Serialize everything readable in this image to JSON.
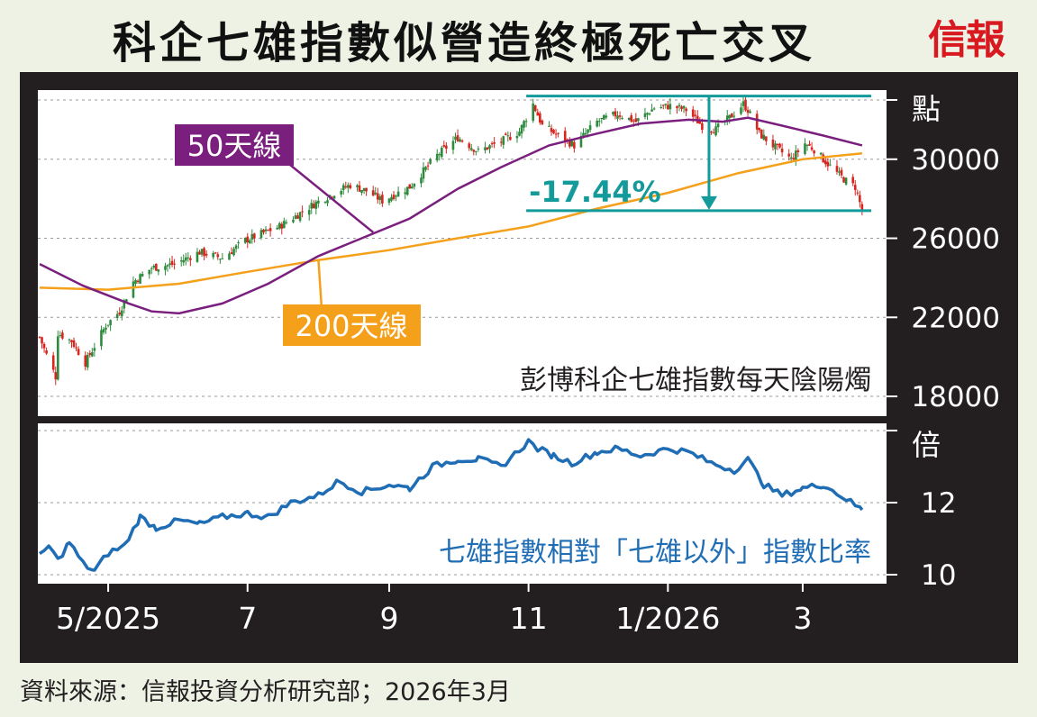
{
  "headline": "科企七雄指數似營造終極死亡交叉",
  "brand": "信報",
  "source": "資料來源：信報投資分析研究部；2026年3月",
  "colors": {
    "up": "#2e8b3e",
    "down": "#d7261f",
    "ma50": "#7b1f7f",
    "ma200": "#f5a01a",
    "ratio": "#1f6db5",
    "teal": "#139a9a",
    "frame": "#231f20",
    "panel": "#ffffff"
  },
  "chart_data": [
    {
      "type": "candlestick",
      "title": "彭博科企七雄指數每天陰陽燭",
      "y_unit": "點",
      "ylim": [
        17000,
        33500
      ],
      "y_ticks": [
        18000,
        22000,
        26000,
        30000
      ],
      "x_ticks": [
        "5/2025",
        "7",
        "9",
        "11",
        "1/2026",
        "3"
      ],
      "x_range": [
        "2025-04-01",
        "2026-03-31"
      ],
      "grid": true,
      "close_anchors": [
        [
          "2025-04-01",
          21000
        ],
        [
          "2025-04-04",
          20100
        ],
        [
          "2025-04-08",
          19000
        ],
        [
          "2025-04-09",
          21200
        ],
        [
          "2025-04-15",
          20800
        ],
        [
          "2025-04-21",
          19700
        ],
        [
          "2025-04-30",
          21600
        ],
        [
          "2025-05-06",
          22300
        ],
        [
          "2025-05-12",
          23800
        ],
        [
          "2025-05-20",
          24500
        ],
        [
          "2025-05-30",
          24700
        ],
        [
          "2025-06-10",
          25300
        ],
        [
          "2025-06-20",
          25000
        ],
        [
          "2025-06-30",
          25900
        ],
        [
          "2025-07-15",
          26600
        ],
        [
          "2025-07-31",
          27800
        ],
        [
          "2025-08-08",
          28300
        ],
        [
          "2025-08-15",
          28700
        ],
        [
          "2025-08-22",
          28400
        ],
        [
          "2025-08-29",
          27900
        ],
        [
          "2025-09-10",
          28600
        ],
        [
          "2025-09-22",
          30200
        ],
        [
          "2025-10-01",
          31100
        ],
        [
          "2025-10-10",
          30400
        ],
        [
          "2025-10-20",
          30900
        ],
        [
          "2025-10-28",
          31400
        ],
        [
          "2025-11-03",
          32800
        ],
        [
          "2025-11-07",
          31700
        ],
        [
          "2025-11-14",
          31200
        ],
        [
          "2025-11-21",
          30700
        ],
        [
          "2025-12-01",
          31900
        ],
        [
          "2025-12-10",
          32300
        ],
        [
          "2025-12-18",
          31900
        ],
        [
          "2025-12-26",
          32600
        ],
        [
          "2026-01-02",
          32700
        ],
        [
          "2026-01-09",
          32500
        ],
        [
          "2026-01-16",
          31700
        ],
        [
          "2026-01-22",
          31500
        ],
        [
          "2026-01-28",
          32100
        ],
        [
          "2026-02-03",
          32800
        ],
        [
          "2026-02-05",
          32500
        ],
        [
          "2026-02-10",
          31300
        ],
        [
          "2026-02-17",
          30600
        ],
        [
          "2026-02-24",
          30000
        ],
        [
          "2026-03-02",
          30800
        ],
        [
          "2026-03-06",
          30500
        ],
        [
          "2026-03-10",
          30000
        ],
        [
          "2026-03-16",
          29300
        ],
        [
          "2026-03-20",
          28900
        ],
        [
          "2026-03-24",
          28600
        ],
        [
          "2026-03-27",
          27400
        ]
      ],
      "series": [
        {
          "name": "50天線",
          "points": [
            [
              "2025-04-01",
              24700
            ],
            [
              "2025-04-20",
              23600
            ],
            [
              "2025-05-10",
              22700
            ],
            [
              "2025-05-20",
              22300
            ],
            [
              "2025-06-01",
              22200
            ],
            [
              "2025-06-20",
              22700
            ],
            [
              "2025-07-10",
              23700
            ],
            [
              "2025-08-01",
              25100
            ],
            [
              "2025-08-20",
              26000
            ],
            [
              "2025-09-10",
              27000
            ],
            [
              "2025-10-01",
              28500
            ],
            [
              "2025-10-20",
              29600
            ],
            [
              "2025-11-10",
              30700
            ],
            [
              "2025-12-01",
              31300
            ],
            [
              "2025-12-20",
              31800
            ],
            [
              "2026-01-10",
              32000
            ],
            [
              "2026-01-25",
              31900
            ],
            [
              "2026-02-05",
              32100
            ],
            [
              "2026-02-20",
              31700
            ],
            [
              "2026-03-10",
              31200
            ],
            [
              "2026-03-27",
              30700
            ]
          ]
        },
        {
          "name": "200天線",
          "points": [
            [
              "2025-04-01",
              23500
            ],
            [
              "2025-05-01",
              23400
            ],
            [
              "2025-06-01",
              23700
            ],
            [
              "2025-07-01",
              24300
            ],
            [
              "2025-08-01",
              24900
            ],
            [
              "2025-09-01",
              25400
            ],
            [
              "2025-10-01",
              26000
            ],
            [
              "2025-11-01",
              26600
            ],
            [
              "2025-12-01",
              27500
            ],
            [
              "2026-01-01",
              28300
            ],
            [
              "2026-02-01",
              29300
            ],
            [
              "2026-03-01",
              30000
            ],
            [
              "2026-03-27",
              30300
            ]
          ]
        }
      ],
      "annotations": {
        "ma50_label": "50天線",
        "ma200_label": "200天線",
        "drawdown_label": "-17.44%",
        "drawdown_from": 33200,
        "drawdown_to": 27400
      }
    },
    {
      "type": "line",
      "title": "七雄指數相對「七雄以外」指數比率",
      "y_unit": "倍",
      "ylim": [
        9.8,
        14.2
      ],
      "y_ticks": [
        10,
        12
      ],
      "grid": true,
      "series": [
        {
          "name": "",
          "points": [
            [
              "2025-04-01",
              10.5
            ],
            [
              "2025-04-05",
              10.8
            ],
            [
              "2025-04-09",
              10.4
            ],
            [
              "2025-04-14",
              10.9
            ],
            [
              "2025-04-20",
              10.3
            ],
            [
              "2025-04-25",
              10.1
            ],
            [
              "2025-05-01",
              10.6
            ],
            [
              "2025-05-08",
              10.8
            ],
            [
              "2025-05-15",
              11.6
            ],
            [
              "2025-05-22",
              11.3
            ],
            [
              "2025-06-01",
              11.5
            ],
            [
              "2025-06-10",
              11.4
            ],
            [
              "2025-06-20",
              11.6
            ],
            [
              "2025-07-01",
              11.7
            ],
            [
              "2025-07-10",
              11.6
            ],
            [
              "2025-07-20",
              12.0
            ],
            [
              "2025-08-01",
              12.2
            ],
            [
              "2025-08-10",
              12.6
            ],
            [
              "2025-08-20",
              12.3
            ],
            [
              "2025-09-01",
              12.5
            ],
            [
              "2025-09-10",
              12.4
            ],
            [
              "2025-09-20",
              13.0
            ],
            [
              "2025-10-01",
              13.2
            ],
            [
              "2025-10-10",
              13.2
            ],
            [
              "2025-10-20",
              13.0
            ],
            [
              "2025-11-01",
              13.7
            ],
            [
              "2025-11-05",
              13.5
            ],
            [
              "2025-11-12",
              13.3
            ],
            [
              "2025-11-20",
              13.1
            ],
            [
              "2025-12-01",
              13.4
            ],
            [
              "2025-12-10",
              13.5
            ],
            [
              "2025-12-20",
              13.3
            ],
            [
              "2026-01-01",
              13.5
            ],
            [
              "2026-01-10",
              13.4
            ],
            [
              "2026-01-20",
              13.1
            ],
            [
              "2026-01-30",
              12.9
            ],
            [
              "2026-02-05",
              13.2
            ],
            [
              "2026-02-12",
              12.5
            ],
            [
              "2026-02-20",
              12.2
            ],
            [
              "2026-03-01",
              12.4
            ],
            [
              "2026-03-10",
              12.5
            ],
            [
              "2026-03-20",
              12.1
            ],
            [
              "2026-03-27",
              11.8
            ]
          ]
        }
      ]
    }
  ]
}
